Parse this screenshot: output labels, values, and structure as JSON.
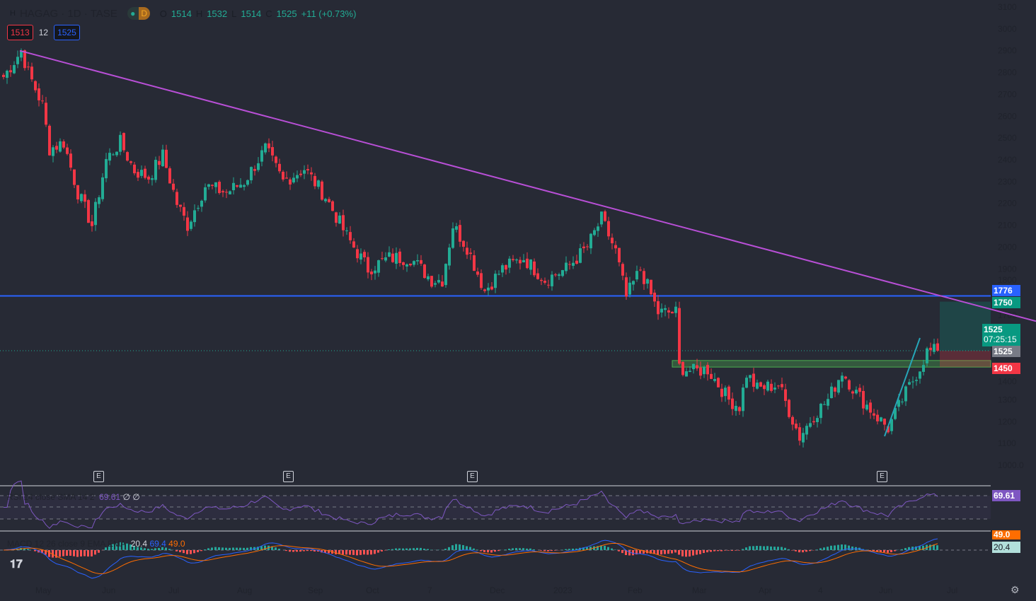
{
  "header": {
    "icon": "H",
    "symbol": "HAGAG · 1D · TASE",
    "flag": "D",
    "o_label": "O",
    "open": "1514",
    "h_label": "H",
    "high": "1532",
    "l_label": "L",
    "low": "1514",
    "c_label": "C",
    "close": "1525",
    "change": "+11 (+0.73%)"
  },
  "order_boxes": {
    "sell": "1513",
    "spread": "12",
    "buy": "1525"
  },
  "price_tags": {
    "resistance": "1776",
    "target": "1750",
    "last": "1525",
    "countdown": "07:25:15",
    "entry": "1525",
    "stop": "1450",
    "rsi": "69.61",
    "macd_signal": "49.0",
    "macd_hist": "20.4"
  },
  "rsi_legend": {
    "label": "RSI 14 close SMA 14 2",
    "value": "69.61",
    "extra": "∅ ∅"
  },
  "macd_legend": {
    "label": "MACD 12 26 close 9 EMA EMA",
    "hist": "20.4",
    "macd": "69.4",
    "signal": "49.0"
  },
  "earnings_marker": "E",
  "colors": {
    "up": "#22ab94",
    "down": "#f23645",
    "trend": "#b84fd6",
    "level": "#2962ff",
    "rsi": "#7e57c2",
    "macd": "#2962ff",
    "signal": "#ff6d00"
  },
  "chart_data": {
    "type": "candlestick",
    "symbol": "HAGAG",
    "interval": "1D",
    "exchange": "TASE",
    "y_ticks": [
      3100,
      3000,
      2900,
      2800,
      2700,
      2600,
      2500,
      2400,
      2300,
      2200,
      2100,
      2000,
      1900,
      1800,
      1700,
      1400,
      1300,
      1200,
      1100,
      "1000.0"
    ],
    "ylim": [
      1000,
      3100
    ],
    "x_ticks": [
      "May",
      "Jun",
      "Jul",
      "Aug",
      "Sep",
      "Oct",
      "7",
      "Dec",
      "2023",
      "Feb",
      "Mar",
      "Apr",
      "4",
      "Jun",
      "Jul"
    ],
    "close_path_bar_price": [
      [
        0,
        2780
      ],
      [
        5,
        2900
      ],
      [
        7,
        2800
      ],
      [
        11,
        2650
      ],
      [
        13,
        2450
      ],
      [
        17,
        2480
      ],
      [
        21,
        2250
      ],
      [
        25,
        2100
      ],
      [
        29,
        2400
      ],
      [
        33,
        2480
      ],
      [
        37,
        2350
      ],
      [
        41,
        2320
      ],
      [
        45,
        2420
      ],
      [
        49,
        2200
      ],
      [
        52,
        2100
      ],
      [
        57,
        2280
      ],
      [
        63,
        2250
      ],
      [
        68,
        2300
      ],
      [
        74,
        2450
      ],
      [
        79,
        2300
      ],
      [
        85,
        2360
      ],
      [
        91,
        2230
      ],
      [
        97,
        2050
      ],
      [
        103,
        1900
      ],
      [
        109,
        1950
      ],
      [
        115,
        1950
      ],
      [
        121,
        1850
      ],
      [
        124,
        1850
      ],
      [
        127,
        2100
      ],
      [
        131,
        2000
      ],
      [
        136,
        1800
      ],
      [
        141,
        1900
      ],
      [
        147,
        1950
      ],
      [
        153,
        1850
      ],
      [
        159,
        1900
      ],
      [
        165,
        2000
      ],
      [
        169,
        2130
      ],
      [
        173,
        1980
      ],
      [
        176,
        1770
      ],
      [
        180,
        1900
      ],
      [
        185,
        1700
      ],
      [
        190,
        1700
      ],
      [
        191,
        1450
      ],
      [
        195,
        1430
      ],
      [
        199,
        1440
      ],
      [
        205,
        1300
      ],
      [
        208,
        1270
      ],
      [
        210,
        1420
      ],
      [
        213,
        1350
      ],
      [
        219,
        1370
      ],
      [
        225,
        1130
      ],
      [
        229,
        1230
      ],
      [
        233,
        1300
      ],
      [
        237,
        1430
      ],
      [
        241,
        1330
      ],
      [
        247,
        1220
      ],
      [
        250,
        1170
      ],
      [
        254,
        1300
      ],
      [
        259,
        1450
      ],
      [
        261,
        1520
      ],
      [
        264,
        1525
      ]
    ],
    "horizontal_level": 1776,
    "trendline": {
      "from": [
        5,
        2900
      ],
      "to": "extends down to ~1660 at right edge"
    },
    "support_zone": [
      1450,
      1480
    ],
    "long_position": {
      "entry": 1525,
      "target": 1750,
      "stop": 1450
    },
    "rsi": {
      "last": 69.61,
      "bands": [
        70,
        50,
        30
      ]
    },
    "macd": {
      "hist": 20.4,
      "macd": 69.4,
      "signal": 49.0
    }
  }
}
